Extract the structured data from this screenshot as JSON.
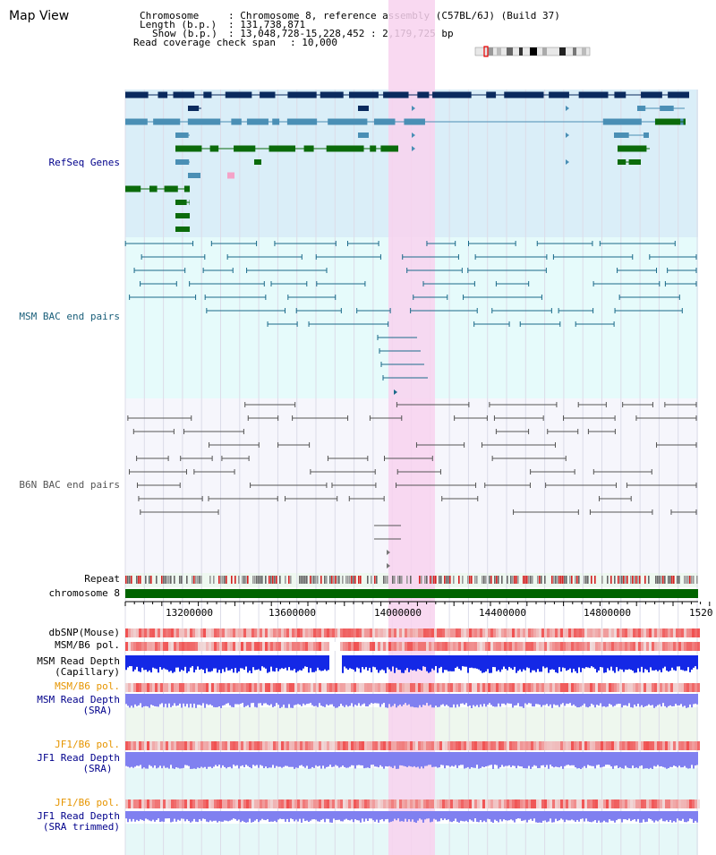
{
  "title": "Map View",
  "header": {
    "chromosome_label": "Chromosome",
    "chromosome_value": ": Chromosome 8, reference assembly (C57BL/6J) (Build 37)",
    "length_label": "Length (b.p.)",
    "length_value": ": 131,738,871",
    "show_label": "Show (b.p.)",
    "show_value": ": 13,048,728-15,228,452 : 2,179,725 bp",
    "coverage_label": "Read coverage check span",
    "coverage_value": ": 10,000"
  },
  "tracks": {
    "refseq": "RefSeq Genes",
    "msm_bac": "MSM BAC end pairs",
    "b6n_bac": "B6N BAC end pairs",
    "repeat": "Repeat",
    "chromosome": "chromosome 8",
    "dbsnp": "dbSNP(Mouse)",
    "msm_b6_pol_1": "MSM/B6 pol.",
    "msm_read_depth_cap_1": "MSM Read Depth",
    "msm_read_depth_cap_2": "(Capillary)",
    "msm_b6_pol_2": "MSM/B6 pol.",
    "msm_read_depth_sra_1": "MSM Read Depth",
    "msm_read_depth_sra_2": "(SRA)",
    "jf1_pol_1": "JF1/B6 pol.",
    "jf1_read_depth_sra_1": "JF1 Read Depth",
    "jf1_read_depth_sra_2": "(SRA)",
    "jf1_pol_2": "JF1/B6 pol.",
    "jf1_read_depth_trim_1": "JF1 Read Depth",
    "jf1_read_depth_trim_2": "(SRA trimmed)"
  },
  "axis": {
    "ticks": [
      "13200000",
      "13600000",
      "14000000",
      "14400000",
      "14800000",
      "1520"
    ]
  },
  "colors": {
    "refseq_bg": "#daeef8",
    "msm_bg": "#e6fbfb",
    "b6n_bg": "#f6f6fc",
    "highlight": "#f8d2ef",
    "chromosome_bar": "#006400",
    "navy_gene": "#0a2a5e",
    "steel_gene": "#4a8fb5",
    "green_gene": "#0b6b0b",
    "msm_pair": "#1b6a8a",
    "b6n_pair": "#555555",
    "depth_capillary": "#1428e6",
    "depth_sra": "#8080f0"
  }
}
